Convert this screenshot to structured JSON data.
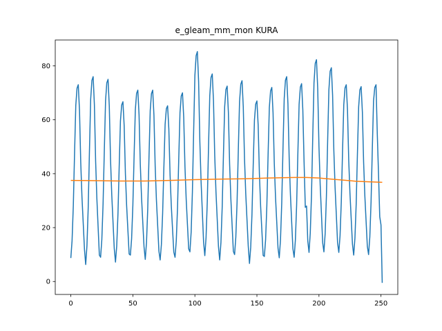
{
  "chart_data": {
    "type": "line",
    "title": "e_gleam_mm_mon KURA",
    "xlim": [
      -12.55,
      263.55
    ],
    "ylim": [
      -4.8,
      89.6
    ],
    "xticks": [
      0,
      50,
      100,
      150,
      200,
      250
    ],
    "yticks": [
      0,
      20,
      40,
      60,
      80
    ],
    "series": [
      {
        "color": "#1f77b4",
        "values": [
          8.7,
          15.1,
          28.0,
          47.3,
          65.3,
          71.7,
          73.0,
          63.4,
          44.1,
          31.2,
          21.6,
          11.9,
          6.3,
          13.3,
          27.2,
          48.1,
          67.6,
          74.6,
          76.0,
          65.5,
          44.6,
          30.7,
          20.2,
          9.8,
          9.0,
          15.6,
          28.8,
          48.6,
          67.1,
          73.7,
          75.0,
          65.1,
          45.3,
          32.1,
          22.2,
          12.3,
          7.2,
          13.2,
          25.1,
          42.9,
          59.6,
          65.5,
          66.7,
          57.8,
          39.9,
          28.0,
          19.1,
          10.2,
          9.8,
          15.9,
          28.2,
          46.5,
          63.7,
          69.8,
          71.0,
          61.8,
          43.5,
          31.2,
          22.0,
          12.9,
          8.2,
          14.5,
          27.0,
          45.9,
          63.5,
          69.7,
          71.0,
          61.6,
          42.7,
          30.2,
          20.8,
          11.3,
          8.0,
          13.7,
          25.2,
          42.3,
          58.3,
          64.1,
          65.2,
          56.6,
          39.5,
          28.0,
          19.4,
          10.9,
          9.0,
          15.1,
          27.3,
          45.6,
          62.7,
          68.8,
          70.0,
          60.9,
          42.6,
          30.4,
          21.2,
          12.1,
          11.0,
          18.4,
          33.3,
          55.6,
          76.4,
          83.8,
          85.3,
          74.2,
          51.9,
          37.0,
          25.9,
          14.7,
          9.6,
          16.3,
          29.8,
          50.0,
          68.9,
          75.7,
          77.0,
          66.9,
          46.7,
          33.2,
          23.1,
          13.0,
          8.0,
          14.5,
          27.4,
          46.7,
          64.8,
          71.2,
          72.5,
          62.8,
          43.5,
          30.6,
          20.9,
          11.2,
          10.0,
          16.5,
          29.4,
          48.7,
          66.8,
          73.2,
          74.5,
          64.8,
          45.5,
          32.6,
          22.9,
          13.2,
          6.7,
          12.7,
          24.8,
          42.9,
          59.8,
          65.8,
          67.0,
          58.0,
          39.9,
          27.8,
          18.8,
          9.7,
          9.3,
          15.6,
          28.1,
          46.9,
          64.5,
          70.7,
          72.0,
          62.6,
          43.8,
          31.2,
          21.8,
          12.4,
          8.8,
          15.5,
          29.0,
          49.1,
          67.9,
          74.7,
          76.0,
          65.9,
          45.8,
          32.3,
          22.2,
          12.2,
          9.0,
          15.4,
          28.3,
          47.6,
          65.7,
          72.1,
          73.4,
          63.7,
          44.4,
          27.5,
          28.0,
          15.0,
          10.8,
          18.0,
          32.3,
          53.7,
          73.7,
          80.9,
          82.3,
          71.6,
          50.1,
          35.8,
          25.1,
          14.4,
          11.0,
          17.8,
          31.5,
          52.0,
          71.1,
          78.0,
          79.3,
          69.1,
          48.6,
          34.9,
          24.7,
          14.4,
          10.8,
          17.0,
          29.5,
          48.1,
          65.5,
          71.8,
          73.0,
          63.7,
          45.0,
          32.6,
          23.2,
          13.9,
          9.8,
          16.1,
          28.6,
          47.3,
          64.8,
          71.1,
          72.3,
          62.9,
          44.2,
          31.7,
          22.3,
          13.0,
          10.0,
          16.5,
          29.6,
          49.0,
          67.0,
          72.0,
          73.0,
          55.0,
          40.0,
          24.0,
          21.0,
          -0.5
        ]
      },
      {
        "color": "#ff7f0e",
        "x": [
          0,
          20,
          40,
          60,
          80,
          100,
          120,
          140,
          160,
          180,
          190,
          200,
          210,
          220,
          230,
          240,
          251
        ],
        "values": [
          37.5,
          37.4,
          37.3,
          37.3,
          37.5,
          37.8,
          38.0,
          38.1,
          38.4,
          38.6,
          38.6,
          38.4,
          38.0,
          37.6,
          37.2,
          37.0,
          36.8
        ]
      }
    ]
  }
}
